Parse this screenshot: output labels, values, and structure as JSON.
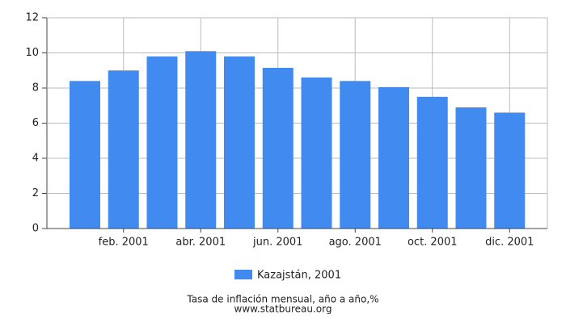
{
  "chart_data": {
    "type": "bar",
    "categories": [
      null,
      "feb. 2001",
      null,
      "abr. 2001",
      null,
      "jun. 2001",
      null,
      "ago. 2001",
      null,
      "oct. 2001",
      null,
      "dic. 2001"
    ],
    "series": [
      {
        "name": "Kazajstán, 2001",
        "color": "#418af0",
        "values": [
          8.4,
          9.0,
          9.8,
          10.1,
          9.8,
          9.15,
          8.6,
          8.4,
          8.05,
          7.5,
          6.9,
          6.6
        ]
      }
    ],
    "ylim": [
      0,
      12
    ],
    "yticks": [
      0,
      2,
      4,
      6,
      8,
      10,
      12
    ],
    "grid": true,
    "caption": "Tasa de inflación mensual, año a año,%",
    "source": "www.statbureau.org"
  }
}
